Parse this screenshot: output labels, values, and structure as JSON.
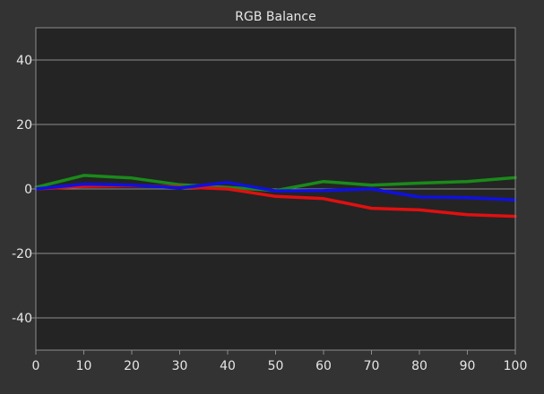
{
  "chart_data": {
    "type": "line",
    "title": "RGB Balance",
    "xlabel": "",
    "ylabel": "",
    "x": [
      0,
      10,
      20,
      30,
      40,
      50,
      60,
      70,
      80,
      90,
      100
    ],
    "xlim": [
      0,
      100
    ],
    "ylim": [
      -50,
      50
    ],
    "x_ticks": [
      0,
      10,
      20,
      30,
      40,
      50,
      60,
      70,
      80,
      90,
      100
    ],
    "y_ticks": [
      -40,
      -20,
      0,
      20,
      40
    ],
    "grid": true,
    "legend": "none",
    "series": [
      {
        "color": "#1a8a1a",
        "values": [
          0.5,
          4.2,
          3.4,
          1.3,
          0.5,
          -0.5,
          2.3,
          1.2,
          1.8,
          2.3,
          3.5
        ]
      },
      {
        "color": "#e01010",
        "values": [
          0,
          0.8,
          1.0,
          0.6,
          0.0,
          -2.3,
          -3.0,
          -6.0,
          -6.5,
          -8.0,
          -8.5
        ]
      },
      {
        "color": "#1010e0",
        "values": [
          0,
          1.5,
          1.2,
          0.3,
          2.0,
          -0.6,
          -0.5,
          0.0,
          -2.5,
          -2.7,
          -3.4
        ]
      }
    ]
  },
  "colors": {
    "background": "#333333",
    "plot_background": "#242424",
    "grid": "#8c8c8c",
    "text": "#e6e6e6"
  }
}
